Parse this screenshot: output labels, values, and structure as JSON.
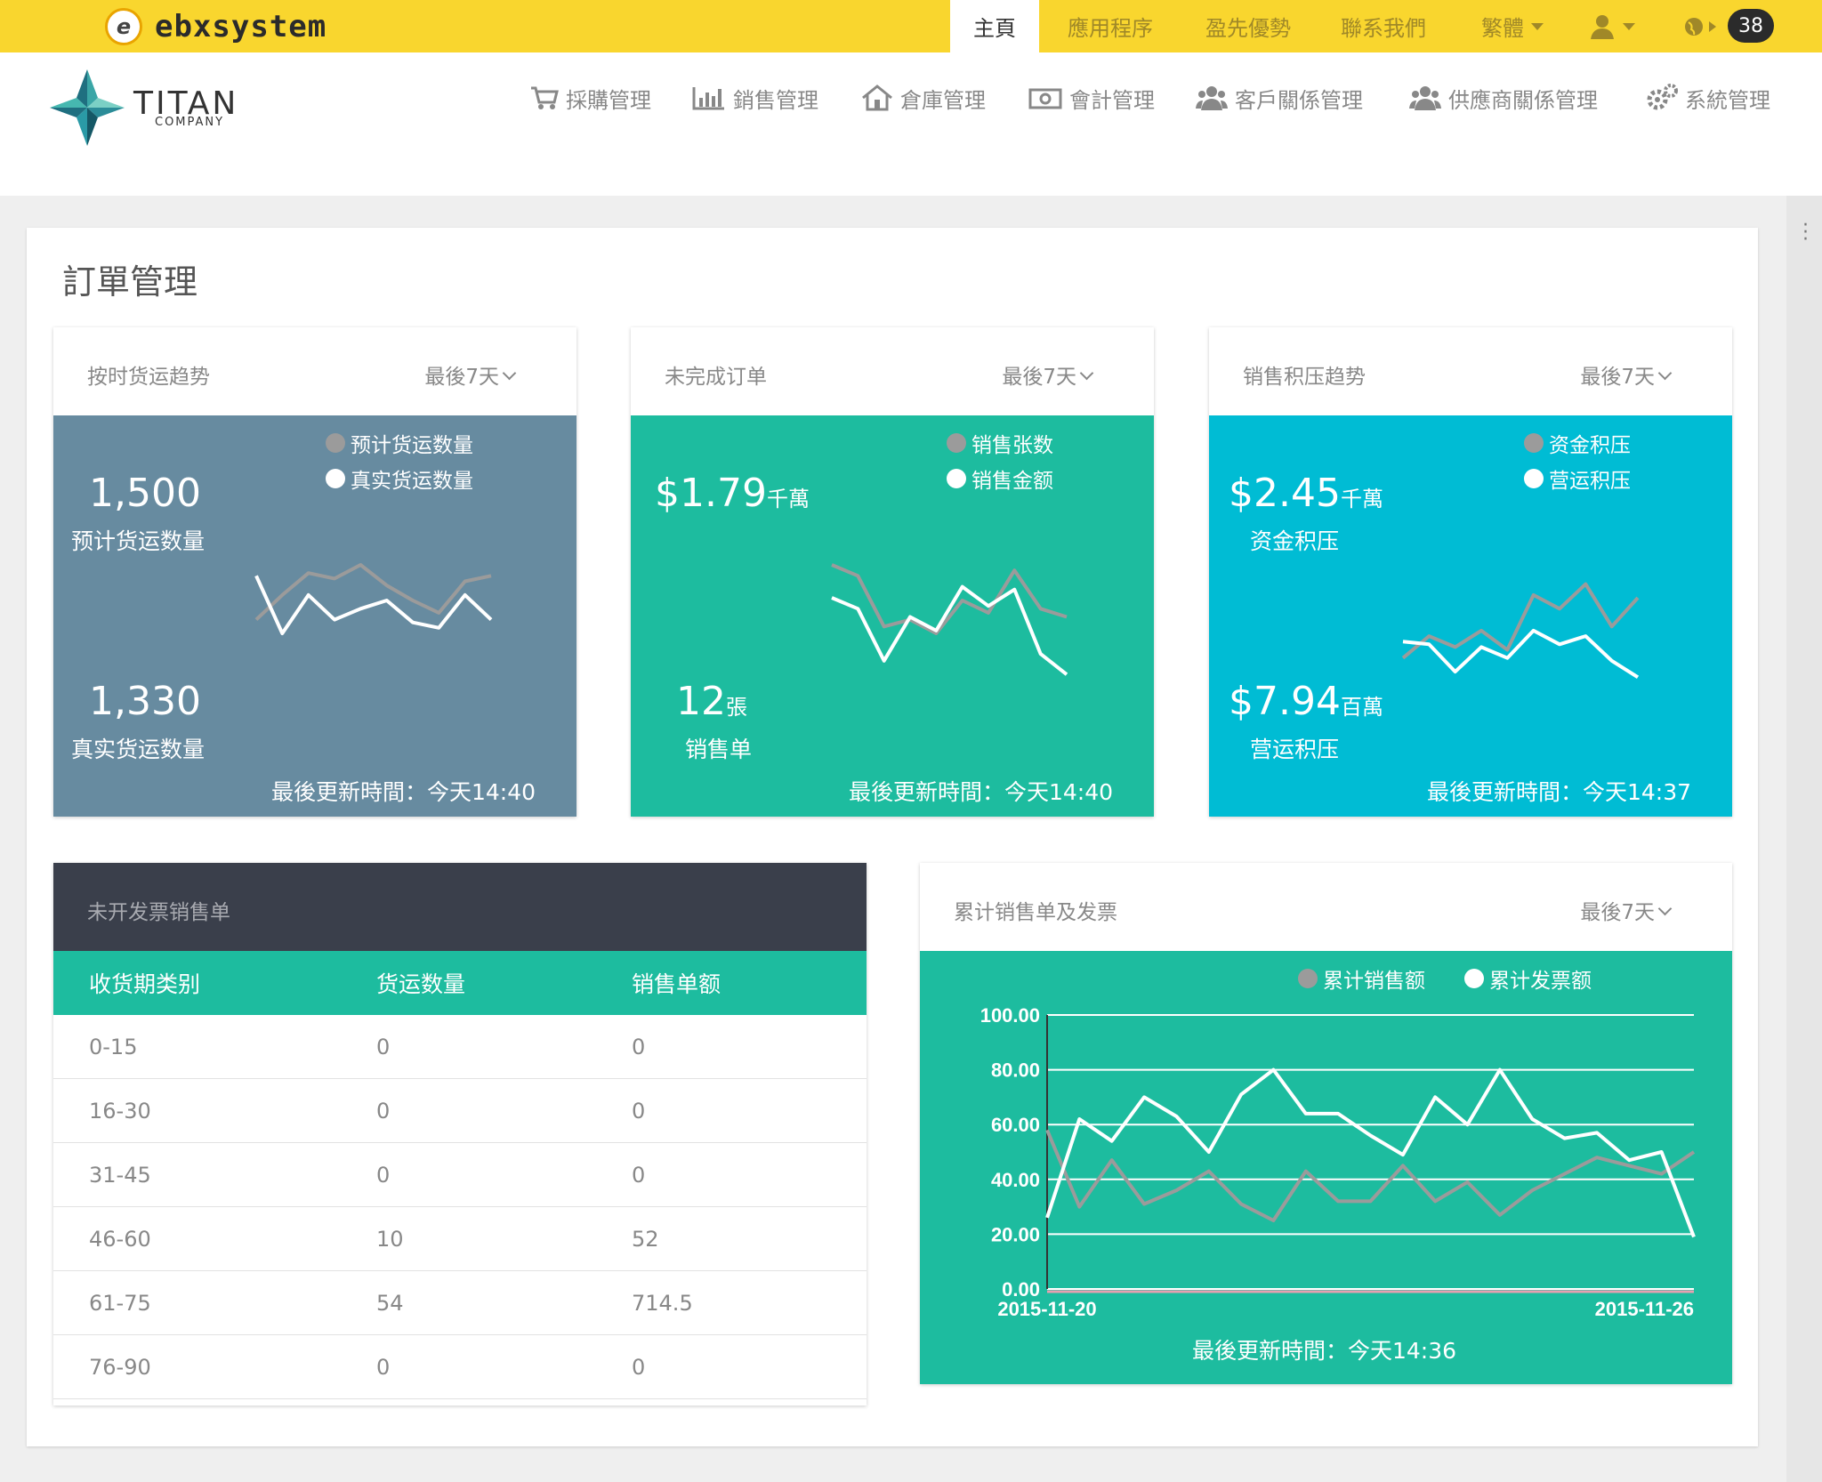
{
  "topbar": {
    "brand_mark": "e",
    "brand": "ebxsystem",
    "items": [
      "主頁",
      "應用程序",
      "盈先優勢",
      "聯系我們"
    ],
    "language": "繁體",
    "badge": "38"
  },
  "header": {
    "logo_title": "TITAN",
    "logo_sub": "COMPANY",
    "nav": [
      "採購管理",
      "銷售管理",
      "倉庫管理",
      "會計管理",
      "客戶關係管理",
      "供應商關係管理",
      "系統管理"
    ]
  },
  "page": {
    "title": "訂單管理"
  },
  "widgets": {
    "shipping": {
      "title": "按时货运趋势",
      "period": "最後7天",
      "legend": [
        "预计货运数量",
        "真实货运数量"
      ],
      "value1": "1,500",
      "label1": "预计货运数量",
      "value2": "1,330",
      "label2": "真实货运数量",
      "updated": "最後更新時間：今天14:40",
      "bg": "#678ba0"
    },
    "open_orders": {
      "title": "未完成订单",
      "period": "最後7天",
      "legend": [
        "销售张数",
        "销售金额"
      ],
      "value1": "$1.79",
      "unit1": "千萬",
      "value2": "12",
      "unit2": "張",
      "label2": "销售单",
      "updated": "最後更新時間：今天14:40",
      "bg": "#1dbc9f"
    },
    "backlog": {
      "title": "销售积压趋势",
      "period": "最後7天",
      "legend": [
        "资金积压",
        "营运积压"
      ],
      "value1": "$2.45",
      "unit1": "千萬",
      "label1": "资金积压",
      "value2": "$7.94",
      "unit2": "百萬",
      "label2": "营运积压",
      "updated": "最後更新時間：今天14:37",
      "bg": "#00bcd4"
    }
  },
  "invoice_table": {
    "title": "未开发票销售单",
    "headers": [
      "收货期类别",
      "货运数量",
      "销售单额"
    ],
    "rows": [
      [
        "0-15",
        "0",
        "0"
      ],
      [
        "16-30",
        "0",
        "0"
      ],
      [
        "31-45",
        "0",
        "0"
      ],
      [
        "46-60",
        "10",
        "52"
      ],
      [
        "61-75",
        "54",
        "714.5"
      ],
      [
        "76-90",
        "0",
        "0"
      ]
    ]
  },
  "cumulative": {
    "title": "累计销售单及发票",
    "period": "最後7天",
    "updated": "最後更新時間：今天14:36"
  },
  "chart_data": [
    {
      "type": "line",
      "x": [
        1,
        2,
        3,
        4,
        5,
        6,
        7,
        8,
        9,
        10
      ],
      "series": [
        {
          "name": "预计货运数量",
          "color": "#9b9b9b",
          "values": [
            60,
            78,
            94,
            90,
            100,
            85,
            74,
            65,
            88,
            92
          ]
        },
        {
          "name": "真实货运数量",
          "color": "#ffffff",
          "values": [
            92,
            50,
            78,
            60,
            68,
            74,
            58,
            54,
            78,
            60
          ]
        }
      ]
    },
    {
      "type": "line",
      "x": [
        1,
        2,
        3,
        4,
        5,
        6,
        7,
        8,
        9,
        10
      ],
      "series": [
        {
          "name": "销售张数",
          "color": "#9b9b9b",
          "values": [
            100,
            92,
            55,
            60,
            50,
            74,
            65,
            96,
            68,
            62
          ]
        },
        {
          "name": "销售金额",
          "color": "#ffffff",
          "values": [
            76,
            68,
            30,
            62,
            52,
            84,
            70,
            82,
            35,
            20
          ]
        }
      ]
    },
    {
      "type": "line",
      "x": [
        1,
        2,
        3,
        4,
        5,
        6,
        7,
        8,
        9,
        10
      ],
      "series": [
        {
          "name": "资金积压",
          "color": "#9b9b9b",
          "values": [
            32,
            48,
            40,
            52,
            38,
            78,
            68,
            86,
            55,
            76
          ]
        },
        {
          "name": "营运积压",
          "color": "#ffffff",
          "values": [
            44,
            42,
            22,
            40,
            32,
            52,
            42,
            48,
            30,
            18
          ]
        }
      ]
    },
    {
      "type": "line",
      "x_start": "2015-11-20",
      "x_end": "2015-11-26",
      "ylim": [
        0,
        100
      ],
      "yticks": [
        "0.00",
        "20.00",
        "40.00",
        "60.00",
        "80.00",
        "100.00"
      ],
      "legend": "top-center",
      "grid": true,
      "series": [
        {
          "name": "累计销售额",
          "color": "#9b9b9b",
          "values": [
            58,
            30,
            47,
            31,
            36,
            43,
            31,
            25,
            43,
            32,
            32,
            45,
            32,
            39,
            27,
            36,
            42,
            48,
            45,
            42,
            50
          ]
        },
        {
          "name": "累计发票额",
          "color": "#ffffff",
          "values": [
            26,
            62,
            54,
            70,
            63,
            50,
            71,
            80,
            64,
            64,
            56,
            49,
            70,
            60,
            80,
            62,
            55,
            57,
            47,
            50,
            19
          ]
        }
      ]
    }
  ]
}
